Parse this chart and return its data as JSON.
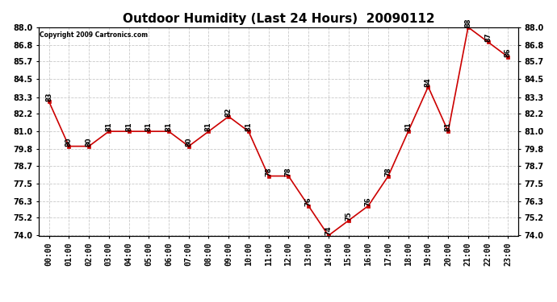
{
  "title": "Outdoor Humidity (Last 24 Hours)  20090112",
  "copyright": "Copyright 2009 Cartronics.com",
  "hours": [
    "00:00",
    "01:00",
    "02:00",
    "03:00",
    "04:00",
    "05:00",
    "06:00",
    "07:00",
    "08:00",
    "09:00",
    "10:00",
    "11:00",
    "12:00",
    "13:00",
    "14:00",
    "15:00",
    "16:00",
    "17:00",
    "18:00",
    "19:00",
    "20:00",
    "21:00",
    "22:00",
    "23:00"
  ],
  "values": [
    83,
    80,
    80,
    81,
    81,
    81,
    81,
    80,
    81,
    82,
    81,
    78,
    78,
    76,
    74,
    75,
    76,
    78,
    81,
    84,
    81,
    88,
    87,
    86
  ],
  "ylim_min": 74.0,
  "ylim_max": 88.0,
  "yticks": [
    74.0,
    75.2,
    76.3,
    77.5,
    78.7,
    79.8,
    81.0,
    82.2,
    83.3,
    84.5,
    85.7,
    86.8,
    88.0
  ],
  "line_color": "#cc0000",
  "marker_color": "#cc0000",
  "bg_color": "#ffffff",
  "grid_color": "#bbbbbb",
  "title_fontsize": 11,
  "annotation_fontsize": 6,
  "tick_fontsize": 7
}
